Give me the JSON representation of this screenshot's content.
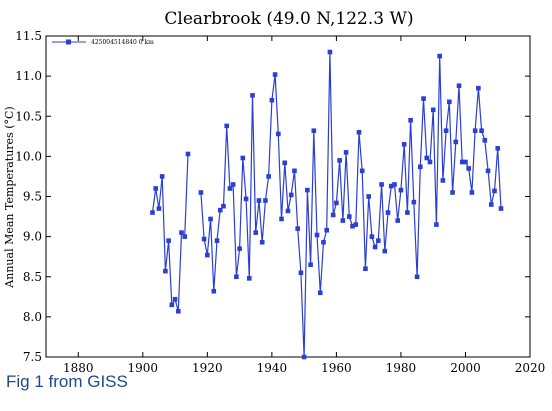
{
  "caption": "Fig 1 from GISS",
  "colors": {
    "series": "#2b3fd1",
    "axis": "#000000",
    "caption": "#1f4a8a"
  },
  "chart_data": {
    "type": "line",
    "title": "Clearbrook (49.0 N,122.3 W)",
    "xlabel": "",
    "ylabel": "Annual Mean Temperatures (°C)",
    "xlim": [
      1870,
      2020
    ],
    "ylim": [
      7.5,
      11.5
    ],
    "xticks": [
      1880,
      1900,
      1920,
      1940,
      1960,
      1980,
      2000,
      2020
    ],
    "yticks": [
      7.5,
      8.0,
      8.5,
      9.0,
      9.5,
      10.0,
      10.5,
      11.0,
      11.5
    ],
    "ytick_labels": [
      "7.5",
      "8.0",
      "8.5",
      "9.0",
      "9.5",
      "10.0",
      "10.5",
      "11.0",
      "11.5"
    ],
    "legend_position": "top-left",
    "grid": false,
    "series": [
      {
        "name": "425004514840  0 km",
        "color": "#2b3fd1",
        "marker": "square",
        "x": [
          1903,
          1904,
          1905,
          1906,
          1907,
          1908,
          1909,
          1910,
          1911,
          1912,
          1913,
          1914,
          1918,
          1919,
          1920,
          1921,
          1922,
          1923,
          1924,
          1925,
          1926,
          1927,
          1928,
          1929,
          1930,
          1931,
          1932,
          1933,
          1934,
          1935,
          1936,
          1937,
          1938,
          1939,
          1940,
          1941,
          1942,
          1943,
          1944,
          1945,
          1946,
          1947,
          1948,
          1949,
          1950,
          1951,
          1952,
          1953,
          1954,
          1955,
          1956,
          1957,
          1958,
          1959,
          1960,
          1961,
          1962,
          1963,
          1964,
          1965,
          1966,
          1967,
          1968,
          1969,
          1970,
          1971,
          1972,
          1973,
          1974,
          1975,
          1976,
          1977,
          1978,
          1979,
          1980,
          1981,
          1982,
          1983,
          1984,
          1985,
          1986,
          1987,
          1988,
          1989,
          1990,
          1991,
          1992,
          1993,
          1994,
          1995,
          1996,
          1997,
          1998,
          1999,
          2000,
          2001,
          2002,
          2003,
          2004,
          2005,
          2006,
          2007,
          2008,
          2009,
          2010,
          2011
        ],
        "y": [
          9.3,
          9.6,
          9.35,
          9.75,
          8.57,
          8.95,
          8.15,
          8.22,
          8.07,
          9.05,
          9.0,
          10.03,
          9.55,
          8.97,
          8.77,
          9.22,
          8.32,
          8.95,
          9.33,
          9.38,
          10.38,
          9.6,
          9.65,
          8.5,
          8.85,
          9.98,
          9.47,
          8.48,
          10.76,
          9.05,
          9.45,
          8.93,
          9.45,
          9.75,
          10.7,
          11.02,
          10.28,
          9.22,
          9.92,
          9.32,
          9.52,
          9.82,
          9.1,
          8.55,
          7.5,
          9.58,
          8.65,
          10.32,
          9.02,
          8.3,
          8.93,
          9.08,
          11.3,
          9.27,
          9.42,
          9.95,
          9.2,
          10.05,
          9.25,
          9.13,
          9.15,
          10.3,
          9.82,
          8.6,
          9.5,
          9.0,
          8.87,
          8.95,
          9.65,
          8.82,
          9.3,
          9.63,
          9.65,
          9.2,
          9.58,
          10.15,
          9.3,
          10.45,
          9.43,
          8.5,
          9.87,
          10.72,
          9.98,
          9.93,
          10.58,
          9.15,
          11.25,
          9.7,
          10.32,
          10.68,
          9.55,
          10.18,
          10.88,
          9.93,
          9.93,
          9.85,
          9.55,
          10.32,
          10.85,
          10.32,
          10.2,
          9.82,
          9.4,
          9.57,
          10.1,
          9.35
        ]
      }
    ]
  }
}
